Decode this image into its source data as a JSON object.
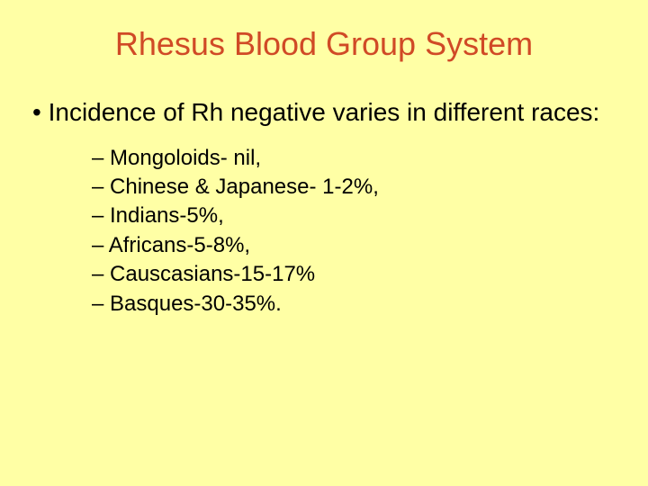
{
  "colors": {
    "background": "#ffffa5",
    "title": "#d04a26",
    "body_text": "#000000"
  },
  "typography": {
    "title_fontsize": 36,
    "body_fontsize": 28,
    "sub_fontsize": 24,
    "font_family": "Arial"
  },
  "title": "Rhesus Blood Group System",
  "main_bullet": "Incidence of Rh negative varies in different races:",
  "sub_items": [
    "Mongoloids- nil,",
    "Chinese & Japanese- 1-2%,",
    "Indians-5%,",
    "Africans-5-8%,",
    "Causcasians-15-17%",
    "Basques-30-35%."
  ]
}
